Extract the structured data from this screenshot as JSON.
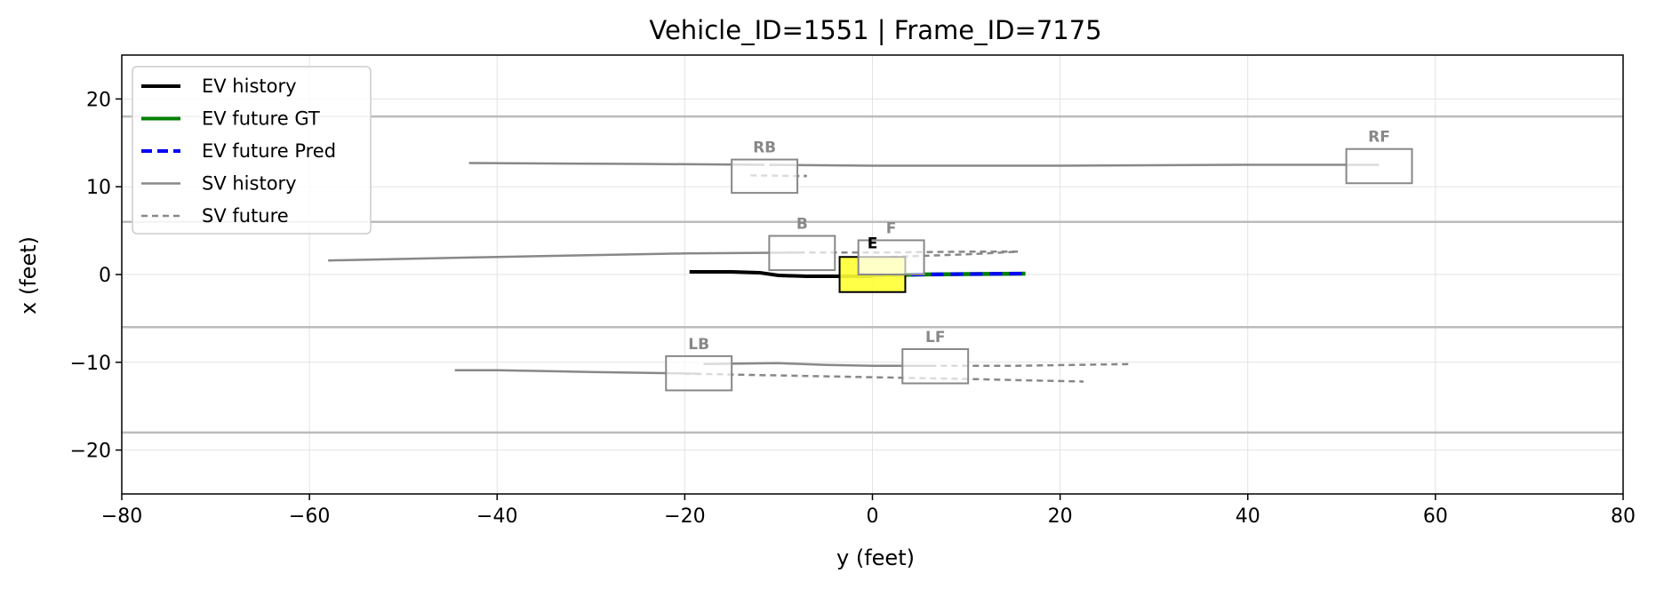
{
  "chart_data": {
    "type": "line",
    "title": "Vehicle_ID=1551  |  Frame_ID=7175",
    "xlabel": "y (feet)",
    "ylabel": "x (feet)",
    "xlim": [
      -80,
      80
    ],
    "ylim": [
      -25,
      25
    ],
    "xticks": [
      -80,
      -60,
      -40,
      -20,
      0,
      20,
      40,
      60,
      80
    ],
    "yticks": [
      -20,
      -10,
      0,
      10,
      20
    ],
    "xtick_labels": [
      "−80",
      "−60",
      "−40",
      "−20",
      "0",
      "20",
      "40",
      "60",
      "80"
    ],
    "ytick_labels": [
      "−20",
      "−10",
      "0",
      "10",
      "20"
    ],
    "grid": true,
    "lane_lines": [
      18,
      6,
      -6,
      -18
    ],
    "legend": {
      "position": "top-left",
      "entries": [
        {
          "label": "EV history",
          "color": "#000000",
          "style": "solid-thick"
        },
        {
          "label": "EV future GT",
          "color": "#008000",
          "style": "solid-thick"
        },
        {
          "label": "EV future Pred",
          "color": "#0000ff",
          "style": "dashed-thick"
        },
        {
          "label": "SV history",
          "color": "#888888",
          "style": "solid"
        },
        {
          "label": "SV future",
          "color": "#888888",
          "style": "dashed"
        }
      ]
    },
    "colors": {
      "ev_history": "#000000",
      "ev_future_gt": "#008000",
      "ev_future_pred": "#0000ff",
      "sv": "#888888",
      "ego_fill": "#ffff33",
      "lane": "#bbbbbb",
      "grid": "#e3e3e3"
    },
    "ego": {
      "label": "E",
      "box": {
        "y0": -3.5,
        "y1": 3.5,
        "x0": -2,
        "x1": 2
      },
      "history": [
        [
          -19.5,
          0.3
        ],
        [
          -15,
          0.3
        ],
        [
          -12,
          0.2
        ],
        [
          -10,
          -0.1
        ],
        [
          -7,
          -0.2
        ],
        [
          -3,
          -0.2
        ],
        [
          0,
          -0.2
        ]
      ],
      "future_gt": [
        [
          0,
          -0.1
        ],
        [
          5,
          0
        ],
        [
          10,
          0.05
        ],
        [
          16.3,
          0.1
        ]
      ],
      "future_pred": [
        [
          0,
          -0.1
        ],
        [
          5,
          0
        ],
        [
          10,
          0.05
        ],
        [
          16,
          0.1
        ]
      ]
    },
    "surrounding": [
      {
        "label": "RB",
        "box": {
          "y0": -15,
          "y1": -8,
          "x0": 9.3,
          "x1": 13.1
        },
        "history": [
          [
            -43,
            12.7
          ],
          [
            -25,
            12.6
          ],
          [
            -11.5,
            12.5
          ]
        ],
        "future": [
          [
            -13,
            11.3
          ],
          [
            -7,
            11.2
          ],
          [
            -7.3,
            11.3
          ]
        ]
      },
      {
        "label": "RF",
        "box": {
          "y0": 50.5,
          "y1": 57.5,
          "x0": 10.4,
          "x1": 14.3
        },
        "history": [
          [
            -11,
            12.5
          ],
          [
            0,
            12.4
          ],
          [
            20,
            12.4
          ],
          [
            40,
            12.5
          ],
          [
            54,
            12.5
          ]
        ],
        "future": []
      },
      {
        "label": "B",
        "box": {
          "y0": -11,
          "y1": -4,
          "x0": 0.5,
          "x1": 4.4
        },
        "history": [
          [
            -58,
            1.6
          ],
          [
            -40,
            2.0
          ],
          [
            -20,
            2.4
          ],
          [
            -7.5,
            2.5
          ]
        ],
        "future": [
          [
            -9,
            2.5
          ],
          [
            0,
            2.5
          ],
          [
            10,
            2.6
          ],
          [
            15.5,
            2.6
          ]
        ]
      },
      {
        "label": "F",
        "box": {
          "y0": -1.5,
          "y1": 5.5,
          "x0": 0,
          "x1": 3.9
        },
        "history": [],
        "future": [
          [
            2,
            2.0
          ],
          [
            10,
            2.3
          ],
          [
            15.5,
            2.6
          ]
        ]
      },
      {
        "label": "LB",
        "box": {
          "y0": -22,
          "y1": -15,
          "x0": -13.2,
          "x1": -9.3
        },
        "history": [
          [
            -44.5,
            -10.9
          ],
          [
            -40,
            -10.9
          ],
          [
            -30,
            -11.1
          ],
          [
            -18.5,
            -11.3
          ]
        ],
        "future": [
          [
            -20,
            -11.3
          ],
          [
            -5,
            -11.6
          ],
          [
            10,
            -11.9
          ],
          [
            22.5,
            -12.2
          ]
        ]
      },
      {
        "label": "LF",
        "box": {
          "y0": 3.2,
          "y1": 10.2,
          "x0": -12.4,
          "x1": -8.5
        },
        "history": [
          [
            -18,
            -10.2
          ],
          [
            -10,
            -10.1
          ],
          [
            -5,
            -10.3
          ],
          [
            0,
            -10.4
          ],
          [
            6.7,
            -10.4
          ]
        ],
        "future": [
          [
            5,
            -10.4
          ],
          [
            15,
            -10.4
          ],
          [
            27.5,
            -10.2
          ]
        ]
      }
    ]
  }
}
